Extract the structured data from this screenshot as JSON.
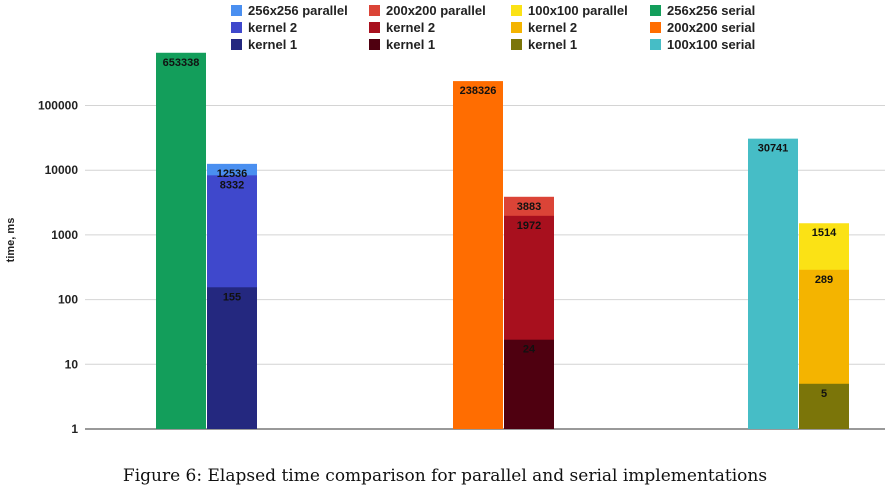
{
  "chart_data": {
    "type": "bar",
    "y_scale": "log",
    "ylabel": "time, ms",
    "ylim": [
      1,
      1000000
    ],
    "y_ticks": [
      "1",
      "10",
      "100",
      "1000",
      "10000",
      "100000"
    ],
    "grid": true,
    "legend_position": "top",
    "groups": [
      {
        "serial": {
          "name": "256x256 serial",
          "value": 653338,
          "label": "653338",
          "color": "#139e5b"
        },
        "stack": [
          {
            "name": "kernel 1",
            "value": 155,
            "label": "155",
            "color": "#24287f"
          },
          {
            "name": "kernel 2",
            "value": 8332,
            "label": "8332",
            "color": "#3f48cc"
          },
          {
            "name": "256x256 parallel",
            "value": 12536,
            "label": "12536",
            "color": "#4a8ff0"
          }
        ]
      },
      {
        "serial": {
          "name": "200x200 serial",
          "value": 238326,
          "label": "238326",
          "color": "#ff6d01"
        },
        "stack": [
          {
            "name": "kernel 1",
            "value": 24,
            "label": "24",
            "color": "#4f0010"
          },
          {
            "name": "kernel 2",
            "value": 1972,
            "label": "1972",
            "color": "#a8101e"
          },
          {
            "name": "200x200 parallel",
            "value": 3883,
            "label": "3883",
            "color": "#db4437"
          }
        ]
      },
      {
        "serial": {
          "name": "100x100 serial",
          "value": 30741,
          "label": "30741",
          "color": "#46bdc6"
        },
        "stack": [
          {
            "name": "kernel 1",
            "value": 5,
            "label": "5",
            "color": "#7b7509"
          },
          {
            "name": "kernel 2",
            "value": 289,
            "label": "289",
            "color": "#f4b400"
          },
          {
            "name": "100x100 parallel",
            "value": 1514,
            "label": "1514",
            "color": "#fbe215"
          }
        ]
      }
    ]
  },
  "legend": [
    {
      "label": "256x256 parallel",
      "color": "#4a8ff0"
    },
    {
      "label": "kernel 2",
      "color": "#3f48cc"
    },
    {
      "label": "kernel 1",
      "color": "#24287f"
    },
    {
      "label": "200x200 parallel",
      "color": "#db4437"
    },
    {
      "label": "kernel 2",
      "color": "#a8101e"
    },
    {
      "label": "kernel 1",
      "color": "#4f0010"
    },
    {
      "label": "100x100 parallel",
      "color": "#fbe215"
    },
    {
      "label": "kernel 2",
      "color": "#f4b400"
    },
    {
      "label": "kernel 1",
      "color": "#7b7509"
    },
    {
      "label": "256x256 serial",
      "color": "#139e5b"
    },
    {
      "label": "200x200 serial",
      "color": "#ff6d01"
    },
    {
      "label": "100x100 serial",
      "color": "#46bdc6"
    }
  ],
  "caption": "Figure 6: Elapsed time comparison for parallel and serial implementations"
}
